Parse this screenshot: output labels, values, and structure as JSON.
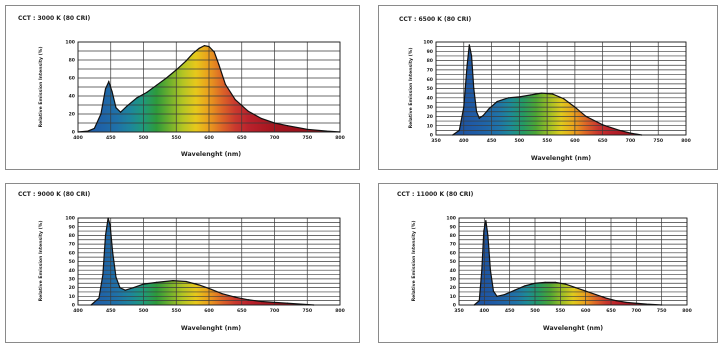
{
  "chart_data": [
    {
      "type": "area",
      "title": "CCT : 3000 K (80 CRI)",
      "xlabel": "Wavelenght (nm)",
      "ylabel": "Relative Emission Intensity (%)",
      "xlim": [
        400,
        800
      ],
      "ylim": [
        0,
        100
      ],
      "x_ticks": [
        400,
        450,
        500,
        550,
        600,
        650,
        700,
        750,
        800
      ],
      "y_ticks": [
        0,
        20,
        40,
        60,
        80,
        100
      ],
      "grid": true,
      "x": [
        400,
        415,
        425,
        435,
        442,
        447,
        452,
        458,
        465,
        475,
        490,
        505,
        520,
        535,
        550,
        565,
        575,
        585,
        593,
        600,
        608,
        615,
        625,
        640,
        660,
        680,
        700,
        720,
        750,
        780,
        800
      ],
      "y": [
        0,
        1,
        4,
        20,
        48,
        56,
        45,
        27,
        22,
        29,
        38,
        44,
        52,
        60,
        69,
        79,
        87,
        93,
        96,
        95,
        89,
        75,
        53,
        36,
        23,
        15,
        10,
        7,
        3,
        1,
        0
      ]
    },
    {
      "type": "area",
      "title": "CCT : 6500 K (80 CRI)",
      "xlabel": "Wavelenght (nm)",
      "ylabel": "Relative Emission Intensity (%)",
      "xlim": [
        350,
        800
      ],
      "ylim": [
        0,
        100
      ],
      "x_ticks": [
        350,
        400,
        450,
        500,
        550,
        600,
        650,
        700,
        750,
        800
      ],
      "y_ticks": [
        0,
        10,
        20,
        30,
        40,
        50,
        60,
        70,
        80,
        90,
        100
      ],
      "grid": true,
      "x": [
        380,
        392,
        400,
        406,
        410,
        414,
        418,
        423,
        428,
        435,
        445,
        460,
        480,
        500,
        520,
        540,
        560,
        580,
        600,
        620,
        650,
        680,
        700,
        720
      ],
      "y": [
        0,
        5,
        30,
        75,
        97,
        85,
        50,
        25,
        18,
        21,
        28,
        36,
        40,
        41,
        43,
        45,
        44,
        39,
        30,
        20,
        11,
        5,
        2,
        0
      ]
    },
    {
      "type": "area",
      "title": "CCT : 9000 K (80 CRI)",
      "xlabel": "Wavelenght (nm)",
      "ylabel": "Relative Emission Intensity (%)",
      "xlim": [
        400,
        800
      ],
      "ylim": [
        0,
        100
      ],
      "x_ticks": [
        400,
        450,
        500,
        550,
        600,
        650,
        700,
        750,
        800
      ],
      "y_ticks": [
        0,
        10,
        20,
        30,
        40,
        50,
        60,
        70,
        80,
        90,
        100
      ],
      "grid": true,
      "x": [
        420,
        432,
        438,
        442,
        446,
        449,
        453,
        458,
        464,
        472,
        485,
        500,
        520,
        545,
        565,
        585,
        600,
        620,
        640,
        660,
        680,
        700,
        720,
        740,
        760
      ],
      "y": [
        0,
        8,
        35,
        80,
        100,
        92,
        60,
        32,
        20,
        17,
        20,
        24,
        26,
        28,
        27,
        23,
        19,
        13,
        9,
        6,
        4,
        3,
        2,
        1,
        0
      ]
    },
    {
      "type": "area",
      "title": "CCT : 11000 K (80 CRI)",
      "xlabel": "Wavelenght (nm)",
      "ylabel": "Relative Emission Intensity (%)",
      "xlim": [
        350,
        800
      ],
      "ylim": [
        0,
        100
      ],
      "x_ticks": [
        350,
        400,
        450,
        500,
        550,
        600,
        650,
        700,
        750,
        800
      ],
      "y_ticks": [
        0,
        10,
        20,
        30,
        40,
        50,
        60,
        70,
        80,
        90,
        100
      ],
      "grid": true,
      "x": [
        380,
        390,
        395,
        399,
        403,
        407,
        412,
        418,
        425,
        440,
        460,
        480,
        500,
        520,
        540,
        560,
        580,
        600,
        620,
        640,
        660,
        680,
        700,
        720,
        750
      ],
      "y": [
        0,
        5,
        40,
        85,
        97,
        80,
        40,
        16,
        10,
        12,
        17,
        22,
        25,
        26,
        26,
        24,
        20,
        16,
        12,
        8,
        5,
        3,
        2,
        1,
        0
      ]
    }
  ]
}
